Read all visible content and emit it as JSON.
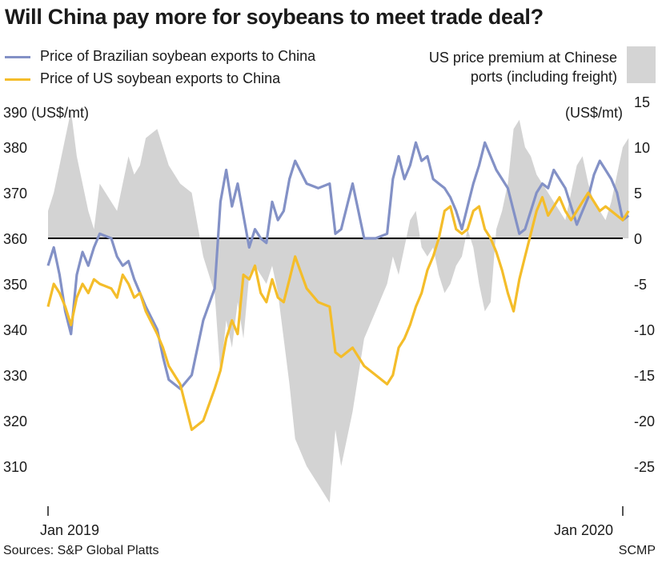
{
  "title": "Will China pay more for soybeans to meet trade deal?",
  "legend": {
    "brazil": "Price of Brazilian soybean exports to China",
    "us": "Price of US soybean exports to China",
    "premium_line1": "US price premium at Chinese",
    "premium_line2": "ports (including freight)"
  },
  "footer": {
    "source": "Sources: S&P Global Platts",
    "credit": "SCMP"
  },
  "colors": {
    "brazil": "#8391c6",
    "us": "#f4bd2a",
    "premium": "#d3d3d3",
    "zero": "#000000"
  },
  "chart_data": {
    "type": "line",
    "title": "Will China pay more for soybeans to meet trade deal?",
    "x_tick_labels": [
      "Jan 2019",
      "Jan 2020"
    ],
    "x_range": [
      "2019-01",
      "2020-01"
    ],
    "left_axis": {
      "unit_label": "390  (US$/mt)",
      "ticks": [
        380,
        370,
        360,
        350,
        340,
        330,
        320,
        310
      ],
      "range": [
        302,
        390
      ]
    },
    "right_axis": {
      "unit_label": "(US$/mt)",
      "ticks": [
        15,
        10,
        5,
        0,
        -5,
        -10,
        -15,
        -20,
        -25
      ],
      "range": [
        -29,
        15
      ]
    },
    "series": [
      {
        "name": "Price of Brazilian soybean exports to China",
        "axis": "left",
        "x": [
          0,
          0.01,
          0.02,
          0.03,
          0.04,
          0.05,
          0.06,
          0.07,
          0.08,
          0.09,
          0.11,
          0.12,
          0.13,
          0.14,
          0.15,
          0.16,
          0.17,
          0.19,
          0.2,
          0.21,
          0.23,
          0.25,
          0.27,
          0.29,
          0.3,
          0.31,
          0.32,
          0.33,
          0.34,
          0.35,
          0.36,
          0.37,
          0.38,
          0.39,
          0.4,
          0.41,
          0.42,
          0.43,
          0.45,
          0.47,
          0.49,
          0.5,
          0.51,
          0.53,
          0.55,
          0.57,
          0.59,
          0.6,
          0.61,
          0.62,
          0.63,
          0.64,
          0.65,
          0.66,
          0.67,
          0.68,
          0.69,
          0.7,
          0.71,
          0.72,
          0.73,
          0.74,
          0.75,
          0.76,
          0.77,
          0.78,
          0.79,
          0.8,
          0.81,
          0.82,
          0.83,
          0.84,
          0.85,
          0.86,
          0.87,
          0.88,
          0.89,
          0.9,
          0.91,
          0.92,
          0.93,
          0.94,
          0.95,
          0.96,
          0.97,
          0.98,
          0.99,
          1,
          1.01
        ],
        "values": [
          354,
          358,
          352,
          344,
          339,
          352,
          357,
          354,
          358,
          361,
          360,
          356,
          354,
          355,
          351,
          348,
          345,
          340,
          334,
          329,
          327,
          330,
          342,
          349,
          368,
          375,
          367,
          372,
          365,
          358,
          362,
          360,
          359,
          368,
          364,
          366,
          373,
          377,
          372,
          371,
          372,
          361,
          362,
          372,
          360,
          360,
          361,
          373,
          378,
          373,
          376,
          381,
          377,
          378,
          373,
          372,
          371,
          369,
          366,
          362,
          367,
          372,
          376,
          381,
          378,
          375,
          373,
          371,
          366,
          361,
          362,
          366,
          370,
          372,
          371,
          375,
          373,
          371,
          367,
          363,
          366,
          369,
          374,
          377,
          375,
          373,
          370,
          364,
          365
        ]
      },
      {
        "name": "Price of US soybean exports to China",
        "axis": "left",
        "x": [
          0,
          0.01,
          0.02,
          0.03,
          0.04,
          0.05,
          0.06,
          0.07,
          0.08,
          0.09,
          0.11,
          0.12,
          0.13,
          0.14,
          0.15,
          0.16,
          0.17,
          0.19,
          0.2,
          0.21,
          0.23,
          0.25,
          0.27,
          0.29,
          0.3,
          0.31,
          0.32,
          0.33,
          0.34,
          0.35,
          0.36,
          0.37,
          0.38,
          0.39,
          0.4,
          0.41,
          0.42,
          0.43,
          0.45,
          0.47,
          0.49,
          0.5,
          0.51,
          0.53,
          0.55,
          0.57,
          0.59,
          0.6,
          0.61,
          0.62,
          0.63,
          0.64,
          0.65,
          0.66,
          0.67,
          0.68,
          0.69,
          0.7,
          0.71,
          0.72,
          0.73,
          0.74,
          0.75,
          0.76,
          0.77,
          0.78,
          0.79,
          0.8,
          0.81,
          0.82,
          0.83,
          0.84,
          0.85,
          0.86,
          0.87,
          0.88,
          0.89,
          0.9,
          0.91,
          0.92,
          0.93,
          0.94,
          0.95,
          0.96,
          0.97,
          0.98,
          0.99,
          1,
          1.01
        ],
        "values": [
          345,
          350,
          348,
          345,
          341,
          347,
          350,
          348,
          351,
          350,
          349,
          347,
          352,
          350,
          347,
          348,
          344,
          339,
          336,
          332,
          328,
          318,
          320,
          327,
          331,
          338,
          342,
          339,
          352,
          351,
          354,
          348,
          346,
          351,
          347,
          346,
          351,
          356,
          349,
          346,
          345,
          335,
          334,
          336,
          332,
          330,
          328,
          330,
          336,
          338,
          341,
          345,
          348,
          353,
          356,
          360,
          366,
          367,
          362,
          361,
          362,
          366,
          367,
          362,
          360,
          357,
          353,
          348,
          344,
          351,
          356,
          361,
          366,
          369,
          365,
          367,
          369,
          366,
          364,
          366,
          368,
          370,
          368,
          366,
          367,
          366,
          365,
          364,
          366
        ]
      }
    ],
    "premium_area": {
      "name": "US price premium at Chinese ports (including freight)",
      "axis": "right",
      "x": [
        0,
        0.01,
        0.02,
        0.03,
        0.04,
        0.05,
        0.06,
        0.07,
        0.08,
        0.09,
        0.11,
        0.12,
        0.13,
        0.14,
        0.15,
        0.16,
        0.17,
        0.19,
        0.2,
        0.21,
        0.23,
        0.25,
        0.27,
        0.29,
        0.3,
        0.31,
        0.32,
        0.33,
        0.34,
        0.35,
        0.36,
        0.37,
        0.38,
        0.39,
        0.4,
        0.41,
        0.42,
        0.43,
        0.45,
        0.47,
        0.49,
        0.5,
        0.51,
        0.53,
        0.55,
        0.57,
        0.59,
        0.6,
        0.61,
        0.62,
        0.63,
        0.64,
        0.65,
        0.66,
        0.67,
        0.68,
        0.69,
        0.7,
        0.71,
        0.72,
        0.73,
        0.74,
        0.75,
        0.76,
        0.77,
        0.78,
        0.79,
        0.8,
        0.81,
        0.82,
        0.83,
        0.84,
        0.85,
        0.86,
        0.87,
        0.88,
        0.89,
        0.9,
        0.91,
        0.92,
        0.93,
        0.94,
        0.95,
        0.96,
        0.97,
        0.98,
        0.99,
        1,
        1.01
      ],
      "values": [
        3,
        5,
        8,
        11,
        14,
        9,
        6,
        3,
        1,
        6,
        4,
        3,
        6,
        9,
        7,
        8,
        11,
        12,
        10,
        8,
        6,
        5,
        -2,
        -6,
        -15,
        -9,
        -12,
        -7,
        -11,
        -4,
        -3,
        -4,
        -5,
        -3,
        -6,
        -11,
        -16,
        -22,
        -25,
        -27,
        -29,
        -21,
        -25,
        -19,
        -11,
        -8,
        -5,
        -2,
        -4,
        -1,
        2,
        3,
        -1,
        -2,
        -1,
        -4,
        -6,
        -5,
        -3,
        -2,
        1,
        -1,
        -5,
        -8,
        -7,
        1,
        3,
        6,
        12,
        13,
        10,
        9,
        7,
        6,
        5,
        4,
        3,
        2,
        5,
        8,
        9,
        6,
        4,
        3,
        2,
        4,
        7,
        10,
        11
      ]
    },
    "reference_line": 0
  }
}
